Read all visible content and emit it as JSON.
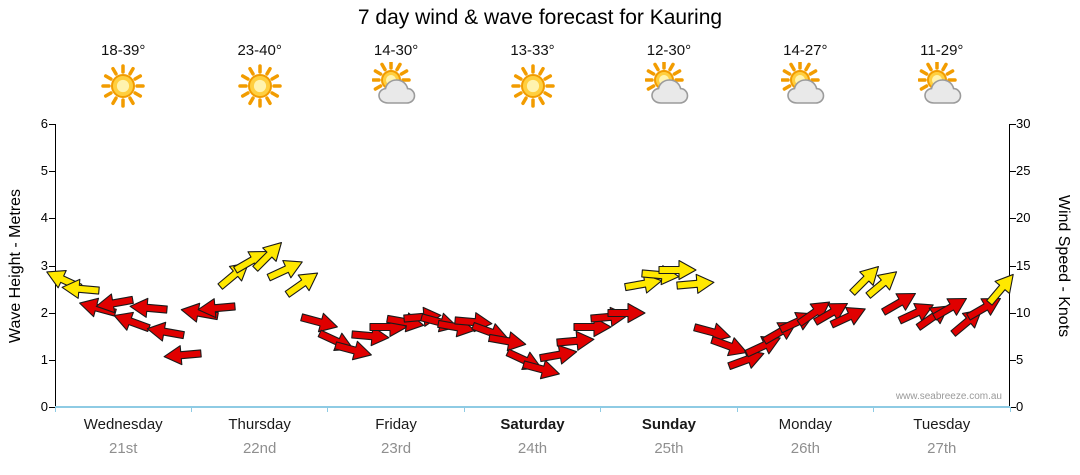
{
  "title": "7 day wind & wave forecast for Kauring",
  "watermark": "www.seabreeze.com.au",
  "axes": {
    "left": {
      "label": "Wave Height - Metres",
      "ticks": [
        "0",
        "1",
        "2",
        "3",
        "4",
        "5",
        "6"
      ],
      "range": [
        0,
        6
      ]
    },
    "right": {
      "label": "Wind Speed - Knots",
      "ticks": [
        "0",
        "5",
        "10",
        "15",
        "20",
        "25",
        "30"
      ],
      "range": [
        0,
        30
      ]
    }
  },
  "colors": {
    "red": "#e00000",
    "yellow": "#ffe800",
    "axis_line": "#000000",
    "x_axis_line": "#8ecbe4",
    "date_text": "#8f8f8f"
  },
  "days": [
    {
      "name": "Wednesday",
      "date": "21st",
      "temp": "18-39°",
      "icon": "sunny",
      "bold": false
    },
    {
      "name": "Thursday",
      "date": "22nd",
      "temp": "23-40°",
      "icon": "sunny",
      "bold": false
    },
    {
      "name": "Friday",
      "date": "23rd",
      "temp": "14-30°",
      "icon": "partly-cloudy",
      "bold": false
    },
    {
      "name": "Saturday",
      "date": "24th",
      "temp": "13-33°",
      "icon": "sunny",
      "bold": true
    },
    {
      "name": "Sunday",
      "date": "25th",
      "temp": "12-30°",
      "icon": "partly-cloudy",
      "bold": true
    },
    {
      "name": "Monday",
      "date": "26th",
      "temp": "14-27°",
      "icon": "partly-cloudy",
      "bold": false
    },
    {
      "name": "Tuesday",
      "date": "27th",
      "temp": "11-29°",
      "icon": "partly-cloudy",
      "bold": false
    }
  ],
  "chart_data": {
    "type": "scatter",
    "subtype": "wind-arrow-forecast",
    "categories": [
      "Wednesday 21st",
      "Thursday 22nd",
      "Friday 23rd",
      "Saturday 24th",
      "Sunday 25th",
      "Monday 26th",
      "Tuesday 27th"
    ],
    "slots_per_day": 8,
    "y_axis_left": "Wave Height - Metres (0-6)",
    "y_axis_right": "Wind Speed - Knots (0-30)",
    "encoding_note": "arrow vertical position = wind speed in knots; colour red < 12 kt, yellow >= 12 kt; arrow angle = wind direction",
    "arrows": [
      {
        "day": 0,
        "slot": 0,
        "knots": 13.5,
        "dir": 205,
        "color": "yellow"
      },
      {
        "day": 0,
        "slot": 1,
        "knots": 12.5,
        "dir": 185,
        "color": "yellow"
      },
      {
        "day": 0,
        "slot": 2,
        "knots": 10.5,
        "dir": 195,
        "color": "red"
      },
      {
        "day": 0,
        "slot": 3,
        "knots": 11,
        "dir": 170,
        "color": "red"
      },
      {
        "day": 0,
        "slot": 4,
        "knots": 9,
        "dir": 200,
        "color": "red"
      },
      {
        "day": 0,
        "slot": 5,
        "knots": 10.5,
        "dir": 185,
        "color": "red"
      },
      {
        "day": 0,
        "slot": 6,
        "knots": 8,
        "dir": 190,
        "color": "red"
      },
      {
        "day": 0,
        "slot": 7,
        "knots": 5.5,
        "dir": 175,
        "color": "red"
      },
      {
        "day": 1,
        "slot": 0,
        "knots": 10,
        "dir": 190,
        "color": "red"
      },
      {
        "day": 1,
        "slot": 1,
        "knots": 10.5,
        "dir": 175,
        "color": "red"
      },
      {
        "day": 1,
        "slot": 2,
        "knots": 14,
        "dir": -40,
        "color": "yellow"
      },
      {
        "day": 1,
        "slot": 3,
        "knots": 15.5,
        "dir": -30,
        "color": "yellow"
      },
      {
        "day": 1,
        "slot": 4,
        "knots": 16,
        "dir": -45,
        "color": "yellow"
      },
      {
        "day": 1,
        "slot": 5,
        "knots": 14.5,
        "dir": -25,
        "color": "yellow"
      },
      {
        "day": 1,
        "slot": 6,
        "knots": 13,
        "dir": -35,
        "color": "yellow"
      },
      {
        "day": 1,
        "slot": 7,
        "knots": 9,
        "dir": 15,
        "color": "red"
      },
      {
        "day": 2,
        "slot": 0,
        "knots": 7,
        "dir": 25,
        "color": "red"
      },
      {
        "day": 2,
        "slot": 1,
        "knots": 6,
        "dir": 15,
        "color": "red"
      },
      {
        "day": 2,
        "slot": 2,
        "knots": 7.5,
        "dir": 5,
        "color": "red"
      },
      {
        "day": 2,
        "slot": 3,
        "knots": 8.5,
        "dir": 0,
        "color": "red"
      },
      {
        "day": 2,
        "slot": 4,
        "knots": 9,
        "dir": 10,
        "color": "red"
      },
      {
        "day": 2,
        "slot": 5,
        "knots": 9.5,
        "dir": -5,
        "color": "red"
      },
      {
        "day": 2,
        "slot": 6,
        "knots": 9,
        "dir": 15,
        "color": "red"
      },
      {
        "day": 2,
        "slot": 7,
        "knots": 8.5,
        "dir": 10,
        "color": "red"
      },
      {
        "day": 3,
        "slot": 0,
        "knots": 9,
        "dir": 5,
        "color": "red"
      },
      {
        "day": 3,
        "slot": 1,
        "knots": 8,
        "dir": 20,
        "color": "red"
      },
      {
        "day": 3,
        "slot": 2,
        "knots": 7,
        "dir": 10,
        "color": "red"
      },
      {
        "day": 3,
        "slot": 3,
        "knots": 5,
        "dir": 25,
        "color": "red"
      },
      {
        "day": 3,
        "slot": 4,
        "knots": 4,
        "dir": 15,
        "color": "red"
      },
      {
        "day": 3,
        "slot": 5,
        "knots": 5.5,
        "dir": -10,
        "color": "red"
      },
      {
        "day": 3,
        "slot": 6,
        "knots": 7,
        "dir": -5,
        "color": "red"
      },
      {
        "day": 3,
        "slot": 7,
        "knots": 8.5,
        "dir": 0,
        "color": "red"
      },
      {
        "day": 4,
        "slot": 0,
        "knots": 9.5,
        "dir": -5,
        "color": "red"
      },
      {
        "day": 4,
        "slot": 1,
        "knots": 10,
        "dir": 0,
        "color": "red"
      },
      {
        "day": 4,
        "slot": 2,
        "knots": 13,
        "dir": -10,
        "color": "yellow"
      },
      {
        "day": 4,
        "slot": 3,
        "knots": 14,
        "dir": 5,
        "color": "yellow"
      },
      {
        "day": 4,
        "slot": 4,
        "knots": 14.5,
        "dir": 0,
        "color": "yellow"
      },
      {
        "day": 4,
        "slot": 5,
        "knots": 13,
        "dir": -5,
        "color": "yellow"
      },
      {
        "day": 4,
        "slot": 6,
        "knots": 8,
        "dir": 15,
        "color": "red"
      },
      {
        "day": 4,
        "slot": 7,
        "knots": 6.5,
        "dir": 20,
        "color": "red"
      },
      {
        "day": 5,
        "slot": 0,
        "knots": 5,
        "dir": -20,
        "color": "red"
      },
      {
        "day": 5,
        "slot": 1,
        "knots": 6.5,
        "dir": -25,
        "color": "red"
      },
      {
        "day": 5,
        "slot": 2,
        "knots": 8,
        "dir": -30,
        "color": "red"
      },
      {
        "day": 5,
        "slot": 3,
        "knots": 9,
        "dir": -25,
        "color": "red"
      },
      {
        "day": 5,
        "slot": 4,
        "knots": 10,
        "dir": -35,
        "color": "red"
      },
      {
        "day": 5,
        "slot": 5,
        "knots": 10,
        "dir": -30,
        "color": "red"
      },
      {
        "day": 5,
        "slot": 6,
        "knots": 9.5,
        "dir": -25,
        "color": "red"
      },
      {
        "day": 5,
        "slot": 7,
        "knots": 13.5,
        "dir": -45,
        "color": "yellow"
      },
      {
        "day": 6,
        "slot": 0,
        "knots": 13,
        "dir": -40,
        "color": "yellow"
      },
      {
        "day": 6,
        "slot": 1,
        "knots": 11,
        "dir": -30,
        "color": "red"
      },
      {
        "day": 6,
        "slot": 2,
        "knots": 10,
        "dir": -25,
        "color": "red"
      },
      {
        "day": 6,
        "slot": 3,
        "knots": 9.5,
        "dir": -35,
        "color": "red"
      },
      {
        "day": 6,
        "slot": 4,
        "knots": 10.5,
        "dir": -30,
        "color": "red"
      },
      {
        "day": 6,
        "slot": 5,
        "knots": 9,
        "dir": -40,
        "color": "red"
      },
      {
        "day": 6,
        "slot": 6,
        "knots": 10.5,
        "dir": -30,
        "color": "red"
      },
      {
        "day": 6,
        "slot": 7,
        "knots": 12.5,
        "dir": -50,
        "color": "yellow"
      }
    ]
  }
}
